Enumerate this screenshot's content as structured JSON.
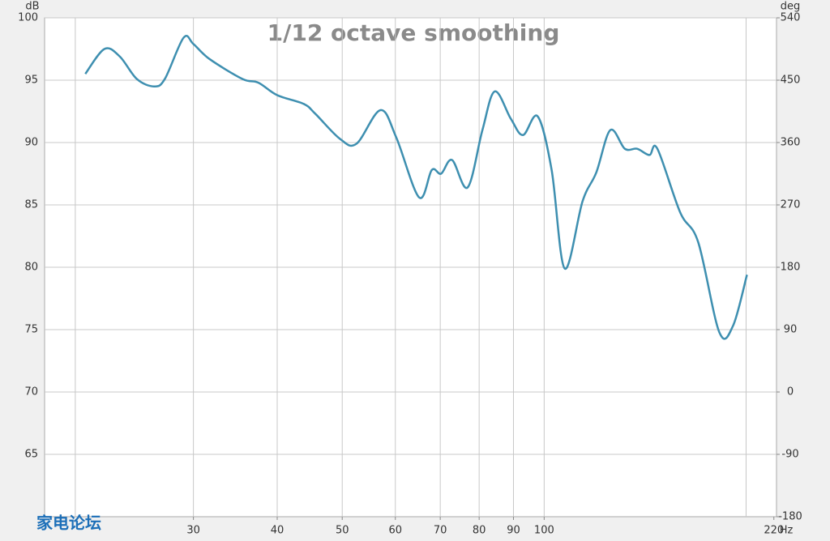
{
  "chart_data": {
    "type": "line",
    "title": "1/12 octave smoothing",
    "y_label": "dB",
    "y2_label": "deg",
    "x_label": "Hz",
    "watermark": "家电论坛",
    "x_scale": "log",
    "grid": true,
    "xlim": [
      18,
      222
    ],
    "xticks": [
      30,
      40,
      50,
      60,
      70,
      80,
      90,
      100,
      220
    ],
    "xgrid": [
      20,
      30,
      40,
      50,
      60,
      70,
      80,
      90,
      100,
      200
    ],
    "ylim": [
      60,
      100
    ],
    "yticks": [
      65,
      70,
      75,
      80,
      85,
      90,
      95,
      100
    ],
    "y2lim": [
      -180,
      540
    ],
    "y2ticks": [
      -180,
      -90,
      0,
      90,
      180,
      270,
      360,
      450,
      540
    ],
    "x": [
      20.7,
      22.1,
      23.3,
      24.7,
      26.2,
      27.2,
      29.0,
      30.0,
      31.7,
      35.5,
      37.5,
      40.0,
      43.8,
      45.6,
      49.6,
      52.5,
      57.0,
      60.2,
      65.1,
      68.0,
      70.2,
      72.9,
      76.9,
      80.9,
      84.4,
      89.2,
      93.0,
      97.8,
      102.6,
      107.3,
      114.1,
      119.6,
      125.5,
      131.9,
      137.6,
      143.5,
      147.5,
      159.5,
      169.7,
      182.4,
      191.2,
      200.6
    ],
    "series": [
      {
        "color": "#3e8fb0",
        "values": [
          95.5,
          97.5,
          96.9,
          95.1,
          94.5,
          95.1,
          98.4,
          97.9,
          96.7,
          95.1,
          94.8,
          93.8,
          93.1,
          92.3,
          90.3,
          89.9,
          92.6,
          90.4,
          85.6,
          87.8,
          87.5,
          88.6,
          86.4,
          91.0,
          94.1,
          91.9,
          90.6,
          92.1,
          87.8,
          79.9,
          85.3,
          87.6,
          91.0,
          89.5,
          89.5,
          89.0,
          89.5,
          84.4,
          82.0,
          74.8,
          75.3,
          79.4
        ]
      }
    ]
  }
}
